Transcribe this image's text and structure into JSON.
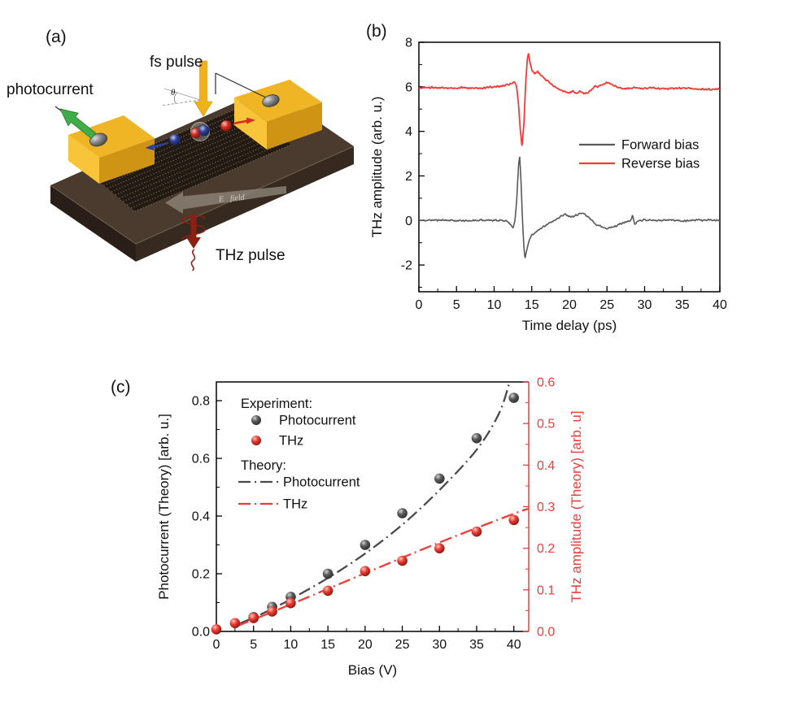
{
  "page": {
    "background": "#ffffff"
  },
  "panel_a": {
    "label": "(a)",
    "annotations": {
      "photocurrent": "photocurrent",
      "fs_pulse": "fs pulse",
      "theta": "θ",
      "e_field": "E⃗field",
      "thz_pulse": "THz pulse"
    },
    "colors": {
      "substrate_top": "#4a3b2e",
      "substrate_front_left": "#2a1f18",
      "substrate_front": "#36291f",
      "substrate_edge": "#77654f",
      "film": "#231a13",
      "film_texture": "#93826d",
      "electrode_top": "#f0b525",
      "electrode_front": "#f8c43a",
      "electrode_side": "#cf9413",
      "contact": "#8a8a8a",
      "wire": "#2b2b2b",
      "photocurrent_arrow": "#3fae49",
      "fs_pulse_arrow": "#f1b118",
      "e_field_arrow": "#8d8478",
      "thz_arrow": "#8c2012",
      "electron": "#2c3f9c",
      "hole": "#d92b1f"
    }
  },
  "panel_b": {
    "label": "(b)"
  },
  "panel_c": {
    "label": "(c)"
  },
  "chart_data": [
    {
      "type": "line",
      "panel": "b",
      "title": "",
      "xlabel": "Time delay (ps)",
      "ylabel": "THz amplitude (arb. u.)",
      "xlim": [
        0,
        40
      ],
      "ylim": [
        -3.2,
        8
      ],
      "xticks": [
        0,
        5,
        10,
        15,
        20,
        25,
        30,
        35,
        40
      ],
      "yticks": [
        -2,
        0,
        2,
        4,
        6,
        8
      ],
      "x_minor_step": 2.5,
      "y_minor_step": 1,
      "grid": false,
      "legend_position": "center-right",
      "series": [
        {
          "name": "Forward bias",
          "color": "#595959",
          "noise_amp": 0.055,
          "seed": 11,
          "keypoints": [
            [
              0,
              0
            ],
            [
              3,
              0.02
            ],
            [
              6,
              -0.02
            ],
            [
              9,
              0.02
            ],
            [
              11.2,
              0
            ],
            [
              11.8,
              -0.05
            ],
            [
              12.2,
              -0.22
            ],
            [
              12.5,
              -0.3
            ],
            [
              12.75,
              -0.05
            ],
            [
              13.0,
              0.9
            ],
            [
              13.25,
              2.55
            ],
            [
              13.4,
              2.9
            ],
            [
              13.55,
              1.9
            ],
            [
              13.75,
              0.2
            ],
            [
              13.95,
              -1.2
            ],
            [
              14.1,
              -1.7
            ],
            [
              14.3,
              -1.35
            ],
            [
              14.6,
              -0.95
            ],
            [
              15.0,
              -0.65
            ],
            [
              15.5,
              -0.55
            ],
            [
              16.1,
              -0.38
            ],
            [
              16.8,
              -0.22
            ],
            [
              17.5,
              -0.1
            ],
            [
              18.2,
              0.05
            ],
            [
              18.9,
              0.2
            ],
            [
              19.5,
              0.28
            ],
            [
              20.1,
              0.18
            ],
            [
              20.7,
              0.22
            ],
            [
              21.3,
              0.3
            ],
            [
              21.9,
              0.32
            ],
            [
              22.4,
              0.18
            ],
            [
              22.9,
              0.05
            ],
            [
              23.3,
              -0.12
            ],
            [
              23.9,
              -0.22
            ],
            [
              24.5,
              -0.3
            ],
            [
              25.2,
              -0.35
            ],
            [
              25.9,
              -0.28
            ],
            [
              26.6,
              -0.18
            ],
            [
              27.4,
              -0.08
            ],
            [
              28.1,
              -0.02
            ],
            [
              28.4,
              0.22
            ],
            [
              28.7,
              -0.18
            ],
            [
              29.1,
              0.0
            ],
            [
              30,
              0.03
            ],
            [
              31.5,
              0.0
            ],
            [
              33,
              0.03
            ],
            [
              35,
              -0.02
            ],
            [
              37,
              0.02
            ],
            [
              40,
              0.0
            ]
          ]
        },
        {
          "name": "Reverse bias",
          "color": "#f23b38",
          "noise_amp": 0.055,
          "seed": 97,
          "keypoints": [
            [
              0,
              5.95
            ],
            [
              2,
              5.97
            ],
            [
              4,
              5.93
            ],
            [
              6,
              5.96
            ],
            [
              8,
              5.94
            ],
            [
              10,
              5.99
            ],
            [
              11,
              6.02
            ],
            [
              11.8,
              6.1
            ],
            [
              12.2,
              6.12
            ],
            [
              12.7,
              6.22
            ],
            [
              13.0,
              6.0
            ],
            [
              13.25,
              5.2
            ],
            [
              13.5,
              4.0
            ],
            [
              13.7,
              3.3
            ],
            [
              13.95,
              4.3
            ],
            [
              14.2,
              6.2
            ],
            [
              14.4,
              7.2
            ],
            [
              14.55,
              7.5
            ],
            [
              14.75,
              7.1
            ],
            [
              15.0,
              6.75
            ],
            [
              15.35,
              6.6
            ],
            [
              15.8,
              6.68
            ],
            [
              16.3,
              6.5
            ],
            [
              16.9,
              6.3
            ],
            [
              17.5,
              6.15
            ],
            [
              18.1,
              5.98
            ],
            [
              18.7,
              5.86
            ],
            [
              19.3,
              5.78
            ],
            [
              19.9,
              5.73
            ],
            [
              20.4,
              5.8
            ],
            [
              20.9,
              5.7
            ],
            [
              21.4,
              5.83
            ],
            [
              21.9,
              5.7
            ],
            [
              22.4,
              5.74
            ],
            [
              22.9,
              5.85
            ],
            [
              23.3,
              6.05
            ],
            [
              23.8,
              6.0
            ],
            [
              24.3,
              6.1
            ],
            [
              24.9,
              6.2
            ],
            [
              25.4,
              6.15
            ],
            [
              26.0,
              6.05
            ],
            [
              26.7,
              5.97
            ],
            [
              27.5,
              5.9
            ],
            [
              28.3,
              5.95
            ],
            [
              29.5,
              5.93
            ],
            [
              31,
              5.96
            ],
            [
              33,
              5.9
            ],
            [
              35,
              5.95
            ],
            [
              37,
              5.9
            ],
            [
              40,
              5.9
            ]
          ]
        }
      ]
    },
    {
      "type": "scatter",
      "panel": "c",
      "title": "",
      "xlabel": "Bias (V)",
      "ylabel_left": "Photocurrent (Theory) [arb. u.]",
      "ylabel_right": "THz amplitude (Theory) [arb. u]",
      "xlim": [
        0,
        42
      ],
      "ylim_left": [
        0,
        0.865
      ],
      "ylim_right": [
        0,
        0.6
      ],
      "xticks": [
        0,
        5,
        10,
        15,
        20,
        25,
        30,
        35,
        40
      ],
      "yticks_left": [
        0.0,
        0.2,
        0.4,
        0.6,
        0.8
      ],
      "yticks_right": [
        0.0,
        0.1,
        0.2,
        0.3,
        0.4,
        0.5,
        0.6
      ],
      "x_minor_step": 2.5,
      "y_left_minor_step": 0.1,
      "y_right_minor_step": 0.05,
      "right_axis_color": "#f23b38",
      "grid": false,
      "markers": {
        "dark-sphere": "#595959",
        "red-sphere": "#ee392d"
      },
      "legend": {
        "experiment_heading": "Experiment:",
        "experiment_items": [
          {
            "label": "Photocurrent",
            "marker": "dark-sphere"
          },
          {
            "label": "THz",
            "marker": "red-sphere"
          }
        ],
        "theory_heading": "Theory:",
        "theory_items": [
          {
            "label": "Photocurrent",
            "color": "#4a4a4a"
          },
          {
            "label": "THz",
            "color": "#f23b38"
          }
        ]
      },
      "series": [
        {
          "name": "Photocurrent (experiment)",
          "kind": "scatter",
          "axis": "left",
          "marker": "dark-sphere",
          "points": [
            [
              5,
              0.05
            ],
            [
              7.5,
              0.085
            ],
            [
              10,
              0.12
            ],
            [
              15,
              0.2
            ],
            [
              20,
              0.3
            ],
            [
              25,
              0.41
            ],
            [
              30,
              0.53
            ],
            [
              35,
              0.67
            ],
            [
              40,
              0.81
            ]
          ]
        },
        {
          "name": "THz (experiment)",
          "kind": "scatter",
          "axis": "right",
          "marker": "red-sphere",
          "points": [
            [
              0,
              0.005
            ],
            [
              2.5,
              0.02
            ],
            [
              5,
              0.032
            ],
            [
              7.5,
              0.048
            ],
            [
              10,
              0.068
            ],
            [
              15,
              0.098
            ],
            [
              20,
              0.145
            ],
            [
              25,
              0.17
            ],
            [
              30,
              0.2
            ],
            [
              35,
              0.24
            ],
            [
              40,
              0.268
            ]
          ]
        },
        {
          "name": "Photocurrent (theory)",
          "kind": "line",
          "axis": "left",
          "color": "#4a4a4a",
          "points": [
            [
              3.2,
              0.028
            ],
            [
              5,
              0.048
            ],
            [
              7.5,
              0.078
            ],
            [
              10,
              0.112
            ],
            [
              15,
              0.185
            ],
            [
              20,
              0.27
            ],
            [
              25,
              0.37
            ],
            [
              30,
              0.49
            ],
            [
              35,
              0.63
            ],
            [
              38,
              0.755
            ],
            [
              39.4,
              0.862
            ]
          ]
        },
        {
          "name": "THz (theory)",
          "kind": "line",
          "axis": "right",
          "color": "#f23b38",
          "points": [
            [
              2.8,
              0.013
            ],
            [
              10,
              0.065
            ],
            [
              20,
              0.14
            ],
            [
              30,
              0.214
            ],
            [
              40,
              0.283
            ],
            [
              42,
              0.295
            ]
          ]
        }
      ]
    }
  ]
}
